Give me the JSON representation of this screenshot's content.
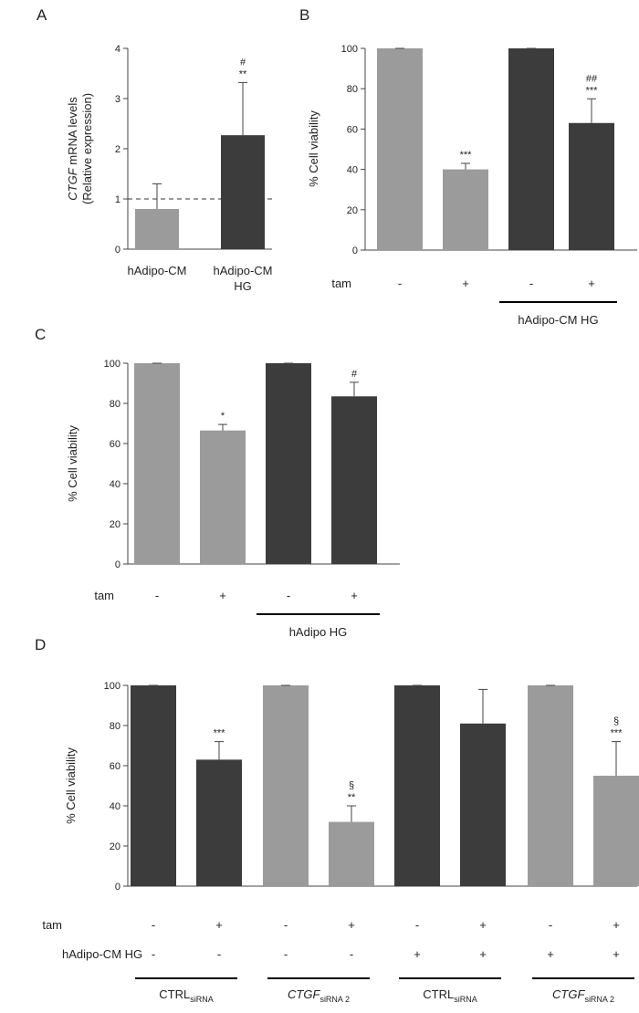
{
  "colors": {
    "light": "#9b9b9b",
    "dark": "#3c3c3c"
  },
  "chart_data": [
    {
      "panel": "A",
      "type": "bar",
      "ylabel_italic": "CTGF",
      "ylabel_rest": " mRNA levels",
      "ylabel2": "(Relative expression)",
      "ylim": [
        0,
        4
      ],
      "yticks": [
        "0",
        "1",
        "2",
        "3",
        "4"
      ],
      "reference_line": 1,
      "categories": [
        "hAdipo-CM",
        "hAdipo-CM HG"
      ],
      "category_lines": [
        [
          "hAdipo-CM"
        ],
        [
          "hAdipo-CM",
          "HG"
        ]
      ],
      "values": [
        0.8,
        2.27
      ],
      "errors": [
        0.5,
        1.05
      ],
      "fill": [
        "light",
        "dark"
      ],
      "annotations": [
        [],
        [
          "#",
          "**"
        ]
      ]
    },
    {
      "panel": "B",
      "type": "bar",
      "ylabel": "% Cell viability",
      "ylim": [
        0,
        100
      ],
      "yticks": [
        "0",
        "20",
        "40",
        "60",
        "80",
        "100"
      ],
      "values": [
        100,
        40,
        100,
        63
      ],
      "errors": [
        0,
        3,
        0,
        12
      ],
      "fill": [
        "light",
        "light",
        "dark",
        "dark"
      ],
      "annotations": [
        [],
        [
          "***"
        ],
        [],
        [
          "##",
          "***"
        ]
      ],
      "condition_rows": [
        {
          "label": "tam",
          "values": [
            "-",
            "+",
            "-",
            "+"
          ]
        }
      ],
      "groups": [
        {
          "label": "hAdipo-CM HG",
          "bars": [
            2,
            3
          ]
        }
      ]
    },
    {
      "panel": "C",
      "type": "bar",
      "ylabel": "% Cell viability",
      "ylim": [
        0,
        100
      ],
      "yticks": [
        "0",
        "20",
        "40",
        "60",
        "80",
        "100"
      ],
      "values": [
        100,
        66.5,
        100,
        83.5
      ],
      "errors": [
        0,
        3,
        0,
        7
      ],
      "fill": [
        "light",
        "light",
        "dark",
        "dark"
      ],
      "annotations": [
        [],
        [
          "*"
        ],
        [],
        [
          "#"
        ]
      ],
      "condition_rows": [
        {
          "label": "tam",
          "values": [
            "-",
            "+",
            "-",
            "+"
          ]
        }
      ],
      "groups": [
        {
          "label": "hAdipo HG",
          "bars": [
            2,
            3
          ]
        }
      ]
    },
    {
      "panel": "D",
      "type": "bar",
      "ylabel": "% Cell viability",
      "ylim": [
        0,
        100
      ],
      "yticks": [
        "0",
        "20",
        "40",
        "60",
        "80",
        "100"
      ],
      "values": [
        100,
        63,
        100,
        32,
        100,
        81,
        100,
        55
      ],
      "errors": [
        0,
        9,
        0,
        8,
        0,
        17,
        0,
        17
      ],
      "fill": [
        "dark",
        "dark",
        "light",
        "light",
        "dark",
        "dark",
        "light",
        "light"
      ],
      "annotations": [
        [],
        [
          "***"
        ],
        [],
        [
          "§",
          "**"
        ],
        [],
        [],
        [],
        [
          "§",
          "***"
        ]
      ],
      "condition_rows": [
        {
          "label": "tam",
          "values": [
            "-",
            "+",
            "-",
            "+",
            "-",
            "+",
            "-",
            "+"
          ]
        },
        {
          "label": "hAdipo-CM HG",
          "values": [
            "-",
            "-",
            "-",
            "-",
            "+",
            "+",
            "+",
            "+"
          ]
        }
      ],
      "groups": [
        {
          "base": "CTRL",
          "sub": "siRNA",
          "italic": false,
          "bars": [
            0,
            1
          ]
        },
        {
          "base": "CTGF",
          "sub": "siRNA 2",
          "italic": true,
          "bars": [
            2,
            3
          ]
        },
        {
          "base": "CTRL",
          "sub": "siRNA",
          "italic": false,
          "bars": [
            4,
            5
          ]
        },
        {
          "base": "CTGF",
          "sub": "siRNA 2",
          "italic": true,
          "bars": [
            6,
            7
          ]
        }
      ]
    }
  ]
}
